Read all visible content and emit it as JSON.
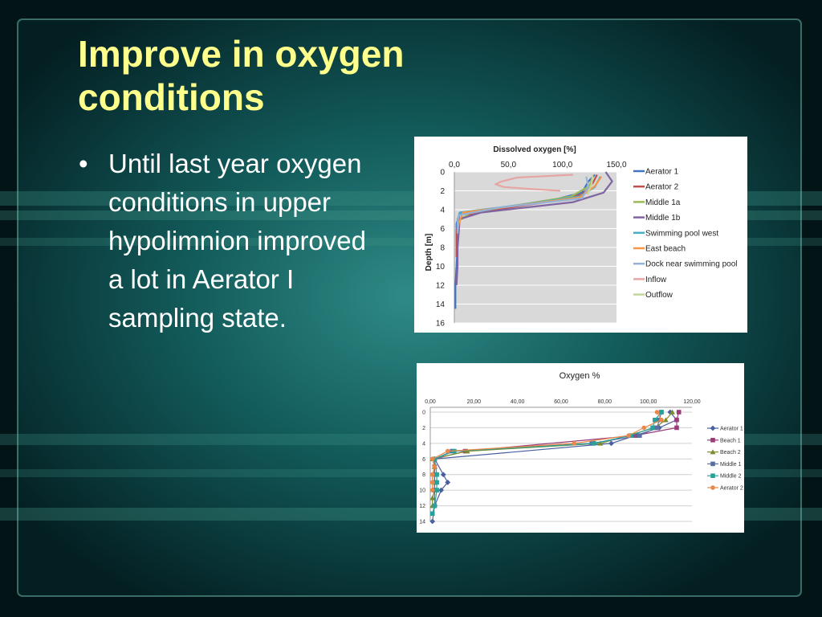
{
  "slide": {
    "title": "Improve in oxygen conditions",
    "bullets": [
      "Until last year oxygen conditions in upper hypolimnion improved a lot in Aerator I sampling state."
    ]
  },
  "chart_data": [
    {
      "type": "line",
      "title": "Dissolved oxygen [%]",
      "xlabel": "",
      "ylabel": "Depth [m]",
      "xlim": [
        0,
        150
      ],
      "ylim": [
        16,
        0
      ],
      "x_axis_position": "top",
      "x_ticks": [
        "0,0",
        "50,0",
        "100,0",
        "150,0"
      ],
      "y_ticks": [
        "0",
        "2",
        "4",
        "6",
        "8",
        "10",
        "12",
        "14",
        "16"
      ],
      "grid": true,
      "plot_background": "#d9d9d9",
      "legend_position": "right",
      "series": [
        {
          "name": "Aerator 1",
          "color": "#4472c4",
          "points": [
            [
              130,
              0.3
            ],
            [
              124,
              1.0
            ],
            [
              118,
              2.2
            ],
            [
              90,
              3.0
            ],
            [
              30,
              4.0
            ],
            [
              5,
              4.5
            ],
            [
              2,
              5.5
            ],
            [
              2,
              6.5
            ],
            [
              3,
              8
            ],
            [
              2,
              10
            ],
            [
              1,
              12
            ],
            [
              1,
              14.5
            ]
          ]
        },
        {
          "name": "Aerator 2",
          "color": "#c0504d",
          "points": [
            [
              132,
              0.3
            ],
            [
              128,
              1.2
            ],
            [
              118,
              2.4
            ],
            [
              85,
              3.2
            ],
            [
              20,
              4.3
            ],
            [
              4,
              5
            ],
            [
              2,
              6.5
            ],
            [
              2,
              8
            ],
            [
              2,
              9
            ]
          ]
        },
        {
          "name": "Middle 1a",
          "color": "#9bbb59",
          "points": [
            [
              128,
              0.5
            ],
            [
              125,
              1.5
            ],
            [
              108,
              2.6
            ],
            [
              70,
              3.3
            ],
            [
              15,
              4.3
            ],
            [
              4,
              5.2
            ],
            [
              3,
              6.5
            ]
          ]
        },
        {
          "name": "Middle 1b",
          "color": "#8064a2",
          "points": [
            [
              140,
              0
            ],
            [
              146,
              1
            ],
            [
              138,
              2.2
            ],
            [
              110,
              3.2
            ],
            [
              25,
              4.3
            ],
            [
              5,
              5
            ],
            [
              4,
              6.5
            ],
            [
              3,
              8
            ],
            [
              3,
              10
            ],
            [
              2,
              12
            ]
          ]
        },
        {
          "name": "Swimming pool west",
          "color": "#4bacc6",
          "points": [
            [
              135,
              0.5
            ],
            [
              130,
              1.6
            ],
            [
              116,
              2.6
            ],
            [
              60,
              3.5
            ],
            [
              5,
              4.3
            ],
            [
              3,
              5
            ],
            [
              3,
              6.5
            ]
          ]
        },
        {
          "name": "East beach",
          "color": "#f79646",
          "points": [
            [
              136,
              0.5
            ],
            [
              130,
              1.5
            ],
            [
              116,
              2.7
            ],
            [
              55,
              3.6
            ],
            [
              8,
              4.3
            ],
            [
              4,
              5.5
            ],
            [
              3,
              6.5
            ]
          ]
        },
        {
          "name": "Dock near swimming pool",
          "color": "#95b3d7",
          "points": [
            [
              122,
              0.5
            ],
            [
              124,
              1.6
            ],
            [
              118,
              2.8
            ],
            [
              40,
              3.8
            ],
            [
              4,
              4.6
            ],
            [
              3,
              5.5
            ],
            [
              3,
              6.5
            ]
          ]
        },
        {
          "name": "Inflow",
          "color": "#e6a6a3",
          "points": [
            [
              110,
              0.3
            ],
            [
              58,
              0.6
            ],
            [
              44,
              1.0
            ],
            [
              38,
              1.3
            ],
            [
              46,
              1.6
            ],
            [
              70,
              1.8
            ],
            [
              98,
              2.0
            ]
          ]
        },
        {
          "name": "Outflow",
          "color": "#c3d69b",
          "points": [
            [
              128,
              0.3
            ],
            [
              127,
              1.3
            ],
            [
              123,
              2.4
            ]
          ]
        }
      ]
    },
    {
      "type": "line",
      "title": "Oxygen %",
      "xlabel": "",
      "ylabel": "",
      "xlim": [
        0,
        120
      ],
      "ylim": [
        14,
        0
      ],
      "x_axis_position": "top",
      "x_ticks": [
        "0,00",
        "20,00",
        "40,00",
        "60,00",
        "80,00",
        "100,00",
        "120,00"
      ],
      "y_ticks": [
        "0",
        "2",
        "4",
        "6",
        "8",
        "10",
        "12",
        "14"
      ],
      "grid": true,
      "legend_position": "right",
      "series": [
        {
          "name": "Aerator 1",
          "color": "#4a5fa0",
          "marker": "diamond",
          "points": [
            [
              110,
              0
            ],
            [
              113,
              1
            ],
            [
              105,
              2
            ],
            [
              83,
              4
            ],
            [
              2,
              6
            ],
            [
              6,
              8
            ],
            [
              8,
              9
            ],
            [
              5,
              10
            ],
            [
              2,
              12
            ],
            [
              1,
              14
            ]
          ]
        },
        {
          "name": "Beach 1",
          "color": "#9b3b7a",
          "marker": "square",
          "points": [
            [
              114,
              0
            ],
            [
              113,
              1
            ],
            [
              113,
              2
            ],
            [
              94,
              3
            ],
            [
              16,
              5
            ],
            [
              2,
              6
            ],
            [
              2,
              7
            ],
            [
              2,
              8
            ],
            [
              2,
              9
            ],
            [
              2,
              10
            ]
          ]
        },
        {
          "name": "Beach 2",
          "color": "#7d8c2a",
          "marker": "triangle",
          "points": [
            [
              111,
              0
            ],
            [
              108,
              1
            ],
            [
              103,
              2
            ],
            [
              78,
              4
            ],
            [
              17,
              5
            ],
            [
              1,
              6
            ],
            [
              2,
              7
            ],
            [
              2,
              8
            ],
            [
              2,
              9
            ],
            [
              2,
              10
            ],
            [
              1,
              11
            ],
            [
              1,
              12
            ]
          ]
        },
        {
          "name": "Middle 1",
          "color": "#5a6ea6",
          "marker": "square",
          "points": [
            [
              106,
              0
            ],
            [
              105,
              1
            ],
            [
              104,
              2
            ],
            [
              96,
              3
            ],
            [
              74,
              4
            ],
            [
              10,
              5
            ],
            [
              2,
              6
            ],
            [
              2,
              8
            ],
            [
              2,
              10
            ],
            [
              2,
              12
            ]
          ]
        },
        {
          "name": "Middle 2",
          "color": "#27a29a",
          "marker": "square",
          "points": [
            [
              106,
              0
            ],
            [
              103,
              1
            ],
            [
              102,
              2
            ],
            [
              92,
              3
            ],
            [
              75,
              4
            ],
            [
              11,
              5
            ],
            [
              2,
              6
            ],
            [
              3,
              8
            ],
            [
              3,
              9
            ],
            [
              3,
              10
            ],
            [
              2,
              12
            ],
            [
              1,
              13
            ]
          ]
        },
        {
          "name": "Aerator 2",
          "color": "#e8894a",
          "marker": "circle",
          "points": [
            [
              104,
              0
            ],
            [
              106,
              1
            ],
            [
              98,
              2
            ],
            [
              91,
              3
            ],
            [
              66,
              4
            ],
            [
              8,
              5
            ],
            [
              1,
              6
            ],
            [
              2,
              7
            ],
            [
              1,
              8
            ],
            [
              1,
              9
            ],
            [
              1,
              10
            ]
          ]
        }
      ]
    }
  ]
}
